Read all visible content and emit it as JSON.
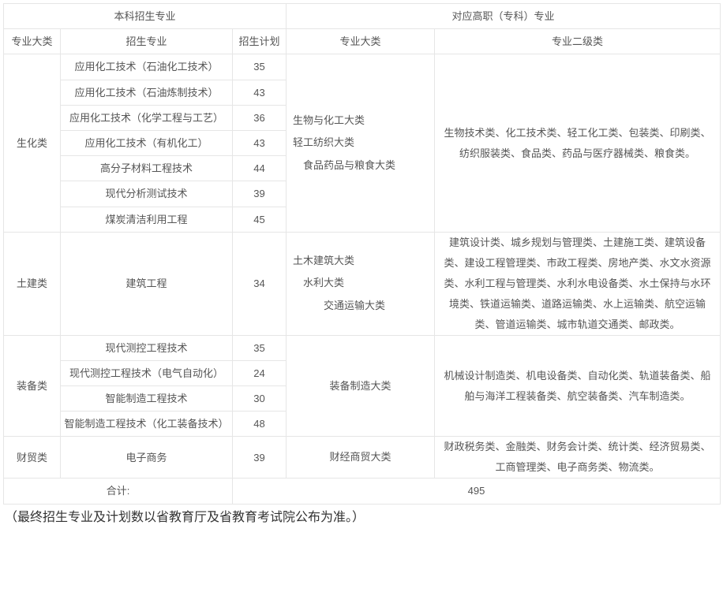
{
  "table": {
    "border_color": "#e6e6e6",
    "text_color": "#555555",
    "background_color": "#ffffff",
    "font_size_pt": 10,
    "header": {
      "bachelor": "本科招生专业",
      "vocational": "对应高职（专科）专业",
      "major_cat": "专业大类",
      "major": "招生专业",
      "plan": "招生计划",
      "voc_cat": "专业大类",
      "voc_sub": "专业二级类"
    },
    "groups": [
      {
        "cat": "生化类",
        "voc_cat_html": "生物与化工大类<br>轻工纺织大类<br>　食品药品与粮食大类",
        "voc_sub_html": "生物技术类、化工技术类、轻工化工类、包装类、印刷类、纺织服装类、食品类、药品与医疗器械类、粮食类。",
        "rows": [
          {
            "major": "应用化工技术（石油化工技术）",
            "plan": "35"
          },
          {
            "major": "应用化工技术（石油炼制技术）",
            "plan": "43"
          },
          {
            "major": "应用化工技术（化学工程与工艺）",
            "plan": "36"
          },
          {
            "major": "应用化工技术（有机化工）",
            "plan": "43"
          },
          {
            "major": "高分子材料工程技术",
            "plan": "44"
          },
          {
            "major": "现代分析测试技术",
            "plan": "39"
          },
          {
            "major": "煤炭清洁利用工程",
            "plan": "45"
          }
        ]
      },
      {
        "cat": "土建类",
        "voc_cat_html": "土木建筑大类<br>　水利大类<br>　　　交通运输大类",
        "voc_sub_html": "建筑设计类、城乡规划与管理类、土建施工类、建筑设备类、建设工程管理类、市政工程类、房地产类、水文水资源类、水利工程与管理类、水利水电设备类、水土保持与水环境类、铁道运输类、道路运输类、水上运输类、航空运输类、管道运输类、城市轨道交通类、邮政类。",
        "rows": [
          {
            "major": "建筑工程",
            "plan": "34"
          }
        ]
      },
      {
        "cat": "装备类",
        "voc_cat_html": "装备制造大类",
        "voc_cat_center": true,
        "voc_sub_html": "机械设计制造类、机电设备类、自动化类、轨道装备类、船舶与海洋工程装备类、航空装备类、汽车制造类。",
        "rows": [
          {
            "major": "现代测控工程技术",
            "plan": "35"
          },
          {
            "major": "现代测控工程技术（电气自动化）",
            "plan": "24"
          },
          {
            "major": "智能制造工程技术",
            "plan": "30"
          },
          {
            "major": "智能制造工程技术（化工装备技术）",
            "plan": "48"
          }
        ]
      },
      {
        "cat": "财贸类",
        "voc_cat_html": "财经商贸大类",
        "voc_cat_center": true,
        "voc_sub_html": "财政税务类、金融类、财务会计类、统计类、经济贸易类、工商管理类、电子商务类、物流类。",
        "rows": [
          {
            "major": "电子商务",
            "plan": "39"
          }
        ]
      }
    ],
    "total": {
      "label": "合计:",
      "value": "495"
    }
  },
  "footnote": "（最终招生专业及计划数以省教育厅及省教育考试院公布为准。）"
}
